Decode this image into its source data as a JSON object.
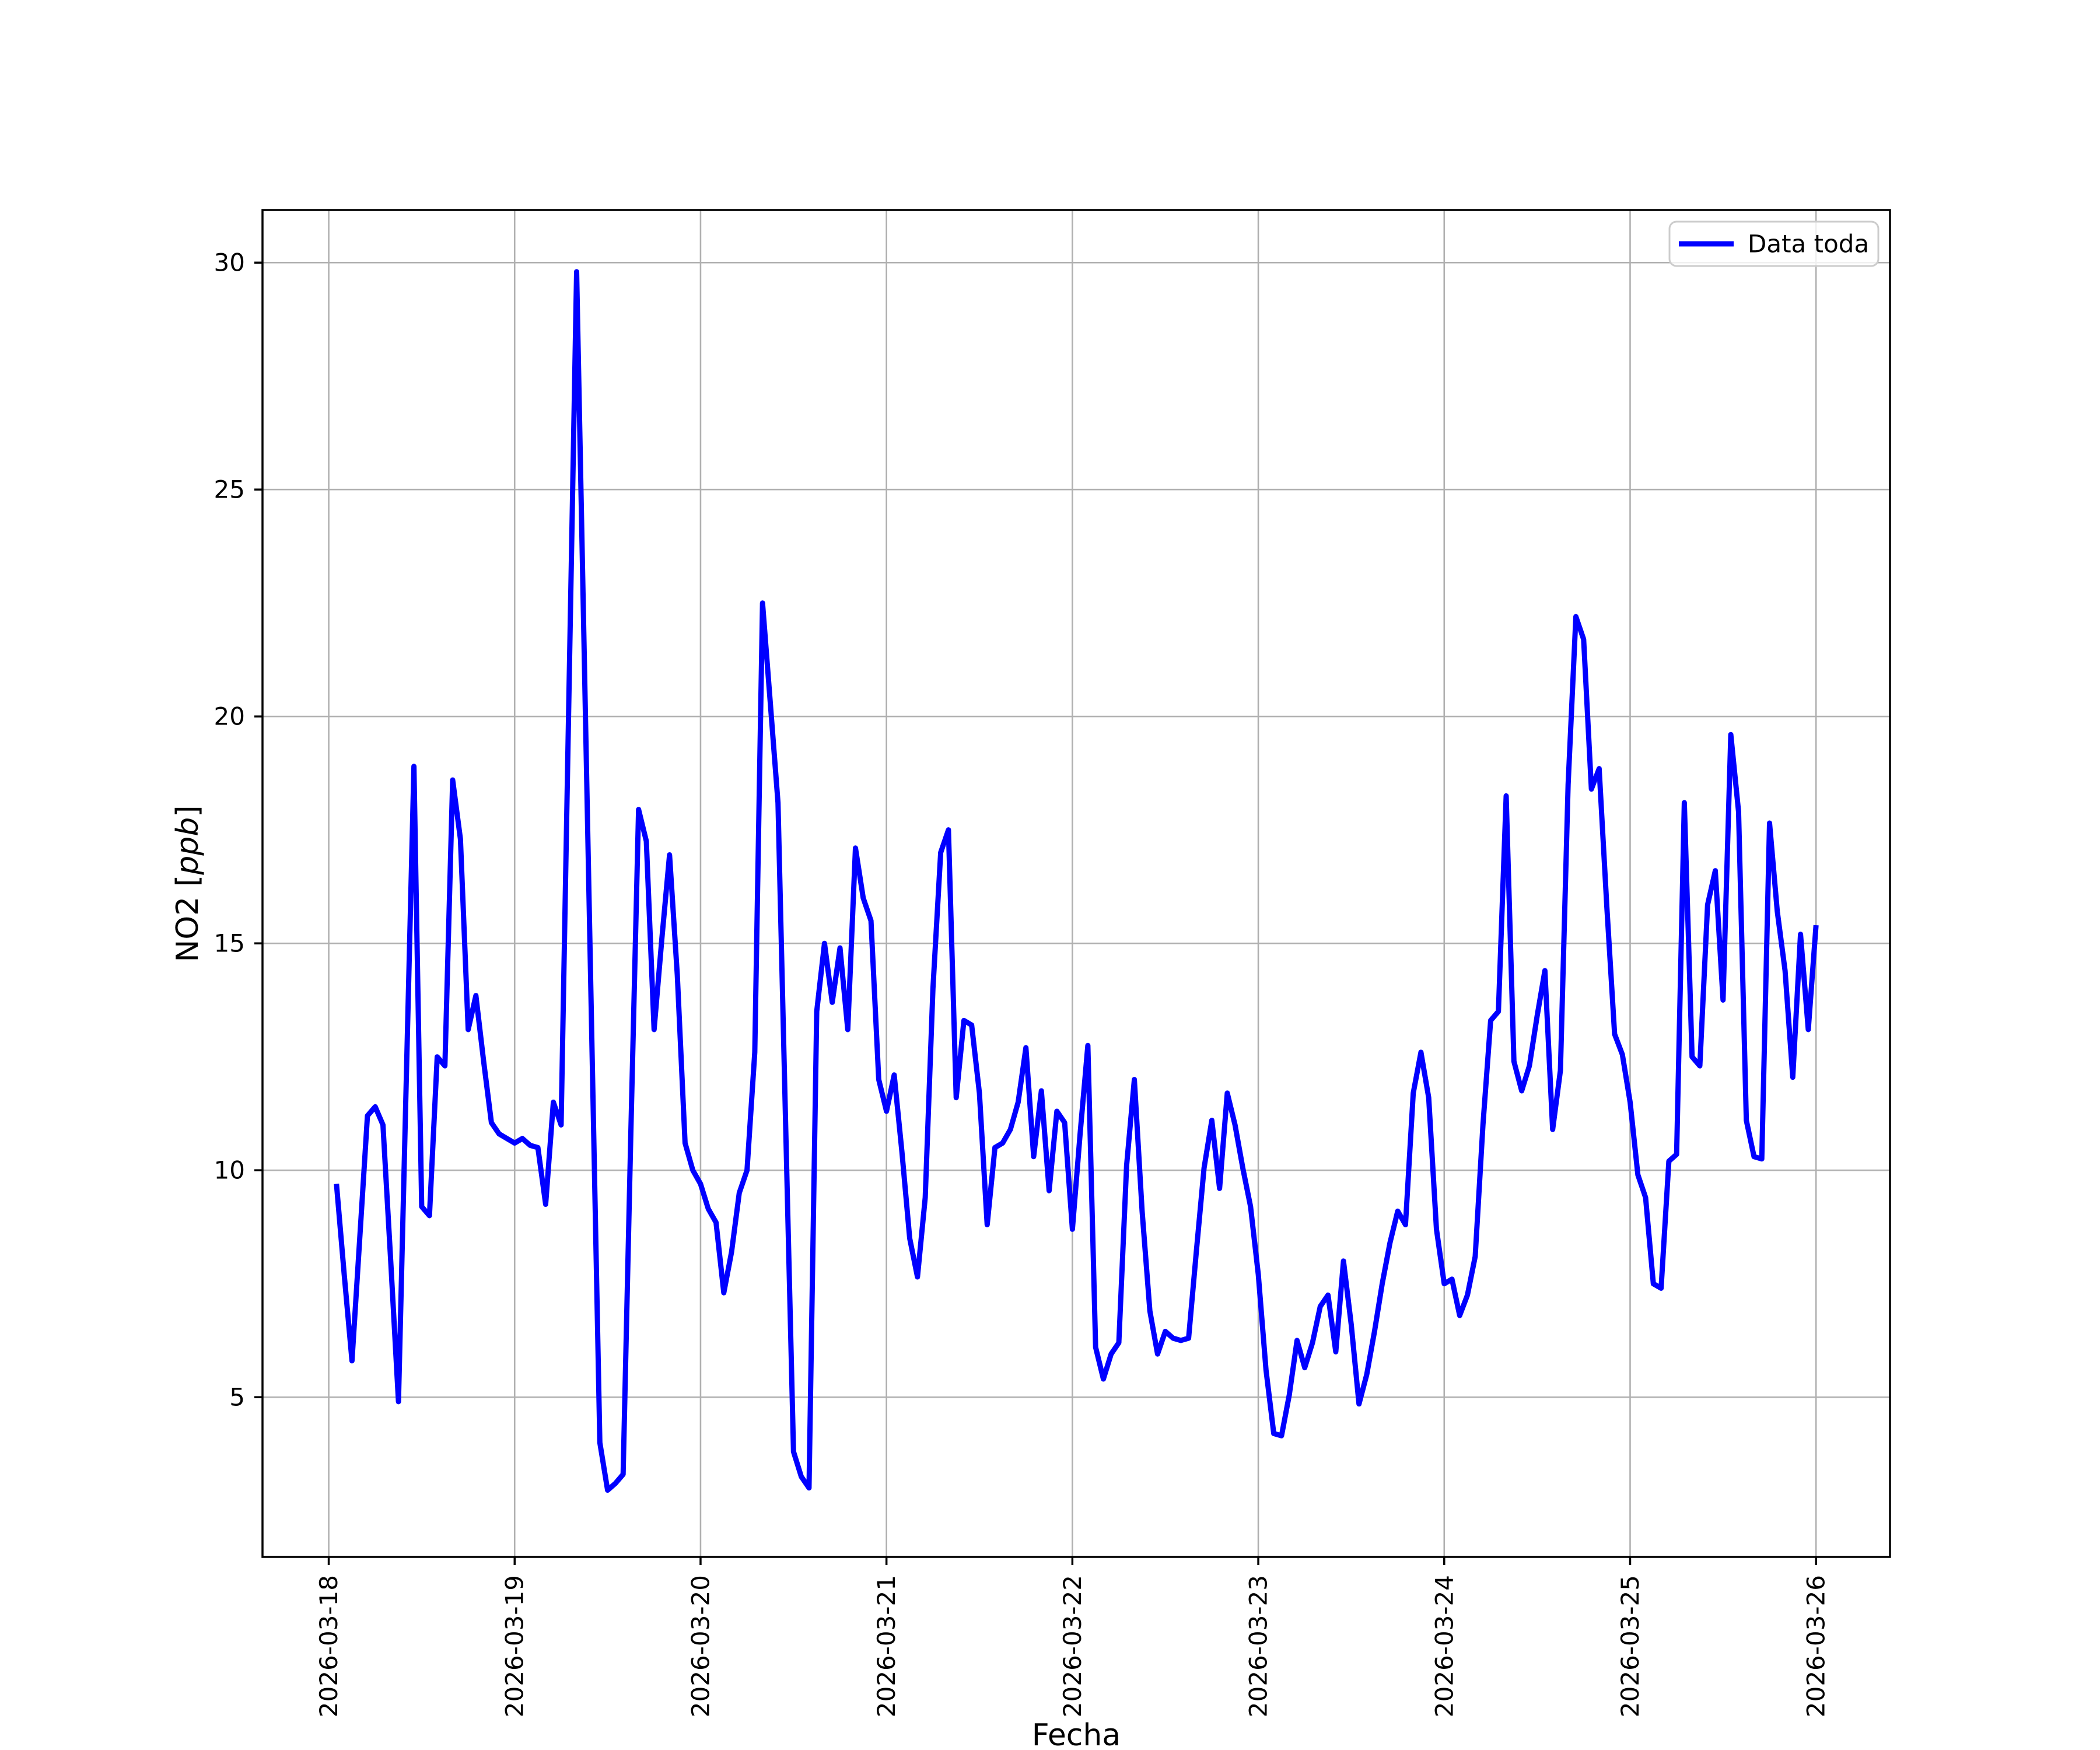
{
  "figure": {
    "background": "#ffffff"
  },
  "chart_data": {
    "type": "line",
    "title": "",
    "xlabel": "Fecha",
    "ylabel": "NO2 [ppb]",
    "ylabel_parts": [
      "NO2 [",
      "ppb",
      "]"
    ],
    "legend": [
      {
        "label": "Data toda",
        "color": "#0000ff"
      }
    ],
    "legend_position": "upper right",
    "grid": true,
    "grid_color": "#b0b0b0",
    "spine_color": "#000000",
    "line_color": "#0000ff",
    "x_tick_labels": [
      "2026-03-18",
      "2026-03-19",
      "2026-03-20",
      "2026-03-21",
      "2026-03-22",
      "2026-03-23",
      "2026-03-24",
      "2026-03-25",
      "2026-03-26"
    ],
    "y_ticks": [
      5,
      10,
      15,
      20,
      25,
      30
    ],
    "x_start": "2026-03-18 01:00",
    "x_end": "2026-03-26 00:00",
    "x_interval_hours": 1,
    "xlim_hours": [
      -8.55,
      201.55
    ],
    "ylim": [
      1.48,
      31.16
    ],
    "values": [
      9.7,
      7.7,
      5.8,
      8.5,
      11.2,
      11.4,
      11.0,
      8.0,
      4.9,
      11.9,
      18.9,
      9.2,
      9.0,
      12.5,
      12.3,
      18.6,
      17.3,
      13.1,
      13.85,
      12.4,
      11.05,
      10.8,
      10.7,
      10.6,
      10.7,
      10.55,
      10.5,
      9.25,
      11.5,
      11.0,
      20.4,
      29.8,
      21.2,
      12.6,
      4.0,
      2.95,
      3.1,
      3.3,
      10.8,
      17.95,
      17.25,
      13.1,
      15.1,
      16.95,
      14.3,
      10.6,
      10.0,
      9.7,
      9.15,
      8.85,
      7.3,
      8.2,
      9.5,
      10.0,
      12.6,
      22.5,
      20.3,
      18.1,
      10.9,
      3.8,
      3.25,
      3.0,
      13.5,
      15.0,
      13.7,
      14.9,
      13.1,
      17.1,
      16.0,
      15.5,
      12.0,
      11.3,
      12.1,
      10.4,
      8.5,
      7.65,
      9.4,
      14.0,
      17.0,
      17.5,
      11.6,
      13.3,
      13.2,
      11.7,
      8.8,
      10.5,
      10.6,
      10.9,
      11.5,
      12.7,
      10.3,
      11.75,
      9.55,
      11.3,
      11.05,
      8.7,
      10.8,
      12.75,
      6.1,
      5.4,
      5.95,
      6.2,
      10.1,
      12.0,
      9.1,
      6.9,
      5.95,
      6.45,
      6.3,
      6.25,
      6.3,
      8.2,
      10.05,
      11.1,
      9.6,
      11.7,
      11.0,
      10.05,
      9.2,
      7.7,
      5.6,
      4.2,
      4.15,
      5.05,
      6.25,
      5.65,
      6.2,
      7.0,
      7.25,
      6.0,
      8.0,
      6.6,
      4.85,
      5.5,
      6.45,
      7.5,
      8.4,
      9.1,
      8.8,
      11.7,
      12.6,
      11.6,
      8.7,
      7.5,
      7.6,
      6.8,
      7.25,
      8.1,
      11.0,
      13.3,
      13.5,
      18.25,
      12.4,
      11.75,
      12.3,
      13.4,
      14.4,
      10.9,
      12.2,
      18.5,
      22.2,
      21.7,
      18.4,
      18.85,
      15.8,
      13.0,
      12.55,
      11.5,
      9.9,
      9.4,
      7.5,
      7.4,
      10.2,
      10.35,
      18.1,
      12.5,
      12.3,
      15.85,
      16.6,
      13.75,
      19.6,
      17.9,
      11.1,
      10.3,
      10.25,
      17.65,
      15.7,
      14.4,
      12.05,
      15.2,
      13.1,
      15.4
    ]
  }
}
